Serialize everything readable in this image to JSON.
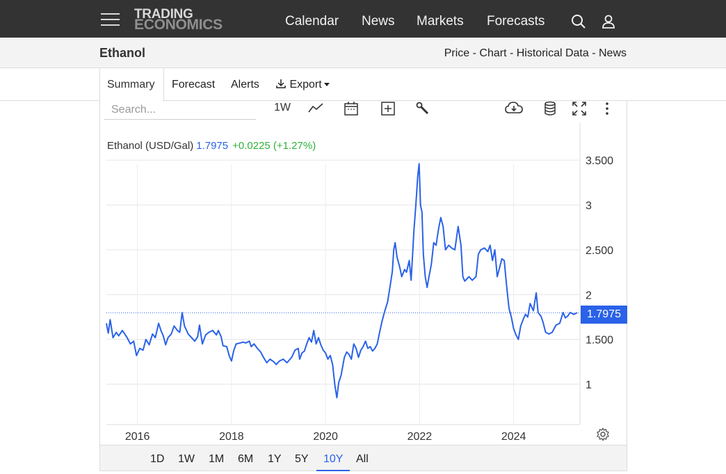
{
  "header": {
    "logo_line1": "TRADING",
    "logo_line2": "ECONOMICS",
    "nav": [
      "Calendar",
      "News",
      "Markets",
      "Forecasts"
    ],
    "icons": [
      "menu-icon",
      "search-icon",
      "user-icon"
    ]
  },
  "subheader": {
    "title": "Ethanol",
    "links": [
      "Price",
      "Chart",
      "Historical Data",
      "News"
    ],
    "separator": " - "
  },
  "tabs": {
    "summary": "Summary",
    "forecast": "Forecast",
    "alerts": "Alerts",
    "export": "Export"
  },
  "toolbar": {
    "search_placeholder": "Search...",
    "interval": "1W",
    "icons": [
      "line-chart-icon",
      "calendar-icon",
      "add-icon",
      "wrench-icon",
      "download-icon",
      "database-icon",
      "fullscreen-icon",
      "more-icon"
    ]
  },
  "legend": {
    "name": "Ethanol (USD/Gal)",
    "price": "1.7975",
    "change": "+0.0225 (+1.27%)"
  },
  "ranges": {
    "items": [
      "1D",
      "1W",
      "1M",
      "6M",
      "1Y",
      "5Y",
      "10Y",
      "All"
    ],
    "active": "10Y"
  },
  "colors": {
    "line": "#2a62e8",
    "positive": "#31b13b",
    "topbar": "#333333"
  },
  "chart_data": {
    "type": "line",
    "title": "Ethanol (USD/Gal)",
    "xlabel": "",
    "ylabel": "",
    "y_ticks": [
      1,
      1.5,
      2,
      2.5,
      3,
      3.5
    ],
    "y_tick_labels": [
      "1",
      "1.500",
      "2",
      "2.500",
      "3",
      "3.500"
    ],
    "x_ticks": [
      2016,
      2018,
      2020,
      2022,
      2024
    ],
    "x_tick_labels": [
      "2016",
      "2018",
      "2020",
      "2022",
      "2024"
    ],
    "xlim": [
      2015.34,
      2025.41
    ],
    "ylim": [
      0.55,
      3.92
    ],
    "grid": true,
    "last_price": 1.7975,
    "last_price_label": "1.7975",
    "series": [
      {
        "values": [
          [
            2015.34,
            1.68
          ],
          [
            2015.38,
            1.57
          ],
          [
            2015.42,
            1.72
          ],
          [
            2015.48,
            1.52
          ],
          [
            2015.55,
            1.58
          ],
          [
            2015.6,
            1.54
          ],
          [
            2015.68,
            1.6
          ],
          [
            2015.78,
            1.52
          ],
          [
            2015.85,
            1.45
          ],
          [
            2015.92,
            1.48
          ],
          [
            2015.98,
            1.32
          ],
          [
            2016.05,
            1.4
          ],
          [
            2016.12,
            1.38
          ],
          [
            2016.18,
            1.5
          ],
          [
            2016.25,
            1.44
          ],
          [
            2016.32,
            1.56
          ],
          [
            2016.38,
            1.52
          ],
          [
            2016.45,
            1.68
          ],
          [
            2016.5,
            1.6
          ],
          [
            2016.55,
            1.54
          ],
          [
            2016.6,
            1.44
          ],
          [
            2016.65,
            1.52
          ],
          [
            2016.72,
            1.56
          ],
          [
            2016.78,
            1.65
          ],
          [
            2016.85,
            1.6
          ],
          [
            2016.9,
            1.58
          ],
          [
            2016.95,
            1.8
          ],
          [
            2017.0,
            1.65
          ],
          [
            2017.08,
            1.56
          ],
          [
            2017.15,
            1.52
          ],
          [
            2017.22,
            1.48
          ],
          [
            2017.28,
            1.53
          ],
          [
            2017.32,
            1.66
          ],
          [
            2017.38,
            1.45
          ],
          [
            2017.45,
            1.55
          ],
          [
            2017.52,
            1.58
          ],
          [
            2017.6,
            1.6
          ],
          [
            2017.68,
            1.55
          ],
          [
            2017.72,
            1.6
          ],
          [
            2017.78,
            1.53
          ],
          [
            2017.82,
            1.43
          ],
          [
            2017.9,
            1.42
          ],
          [
            2017.95,
            1.32
          ],
          [
            2018.0,
            1.26
          ],
          [
            2018.05,
            1.38
          ],
          [
            2018.1,
            1.45
          ],
          [
            2018.18,
            1.46
          ],
          [
            2018.25,
            1.47
          ],
          [
            2018.3,
            1.46
          ],
          [
            2018.38,
            1.48
          ],
          [
            2018.42,
            1.42
          ],
          [
            2018.48,
            1.45
          ],
          [
            2018.55,
            1.4
          ],
          [
            2018.62,
            1.36
          ],
          [
            2018.68,
            1.3
          ],
          [
            2018.75,
            1.24
          ],
          [
            2018.82,
            1.28
          ],
          [
            2018.9,
            1.25
          ],
          [
            2018.95,
            1.22
          ],
          [
            2019.02,
            1.26
          ],
          [
            2019.1,
            1.28
          ],
          [
            2019.18,
            1.24
          ],
          [
            2019.28,
            1.3
          ],
          [
            2019.35,
            1.38
          ],
          [
            2019.42,
            1.4
          ],
          [
            2019.45,
            1.28
          ],
          [
            2019.5,
            1.35
          ],
          [
            2019.55,
            1.37
          ],
          [
            2019.6,
            1.45
          ],
          [
            2019.65,
            1.52
          ],
          [
            2019.7,
            1.47
          ],
          [
            2019.75,
            1.6
          ],
          [
            2019.8,
            1.45
          ],
          [
            2019.85,
            1.52
          ],
          [
            2019.9,
            1.44
          ],
          [
            2019.95,
            1.38
          ],
          [
            2020.0,
            1.35
          ],
          [
            2020.05,
            1.28
          ],
          [
            2020.1,
            1.32
          ],
          [
            2020.15,
            1.22
          ],
          [
            2020.2,
            0.98
          ],
          [
            2020.24,
            0.85
          ],
          [
            2020.28,
            1.02
          ],
          [
            2020.33,
            1.1
          ],
          [
            2020.4,
            1.3
          ],
          [
            2020.45,
            1.36
          ],
          [
            2020.5,
            1.33
          ],
          [
            2020.55,
            1.28
          ],
          [
            2020.6,
            1.45
          ],
          [
            2020.65,
            1.4
          ],
          [
            2020.7,
            1.3
          ],
          [
            2020.75,
            1.38
          ],
          [
            2020.8,
            1.42
          ],
          [
            2020.85,
            1.48
          ],
          [
            2020.9,
            1.4
          ],
          [
            2020.95,
            1.42
          ],
          [
            2021.0,
            1.37
          ],
          [
            2021.05,
            1.4
          ],
          [
            2021.1,
            1.45
          ],
          [
            2021.15,
            1.58
          ],
          [
            2021.2,
            1.7
          ],
          [
            2021.25,
            1.8
          ],
          [
            2021.32,
            1.92
          ],
          [
            2021.38,
            2.12
          ],
          [
            2021.42,
            2.26
          ],
          [
            2021.45,
            2.5
          ],
          [
            2021.48,
            2.58
          ],
          [
            2021.52,
            2.42
          ],
          [
            2021.58,
            2.3
          ],
          [
            2021.62,
            2.2
          ],
          [
            2021.68,
            2.28
          ],
          [
            2021.72,
            2.25
          ],
          [
            2021.78,
            2.38
          ],
          [
            2021.82,
            2.16
          ],
          [
            2021.88,
            2.72
          ],
          [
            2021.92,
            3.0
          ],
          [
            2021.96,
            3.32
          ],
          [
            2021.99,
            3.46
          ],
          [
            2022.02,
            3.0
          ],
          [
            2022.05,
            2.92
          ],
          [
            2022.08,
            2.45
          ],
          [
            2022.12,
            2.2
          ],
          [
            2022.16,
            2.08
          ],
          [
            2022.2,
            2.2
          ],
          [
            2022.25,
            2.34
          ],
          [
            2022.3,
            2.58
          ],
          [
            2022.35,
            2.55
          ],
          [
            2022.4,
            2.72
          ],
          [
            2022.45,
            2.86
          ],
          [
            2022.5,
            2.76
          ],
          [
            2022.55,
            2.5
          ],
          [
            2022.62,
            2.55
          ],
          [
            2022.68,
            2.52
          ],
          [
            2022.75,
            2.5
          ],
          [
            2022.82,
            2.76
          ],
          [
            2022.88,
            2.55
          ],
          [
            2022.92,
            2.2
          ],
          [
            2022.96,
            2.15
          ],
          [
            2023.05,
            2.2
          ],
          [
            2023.12,
            2.16
          ],
          [
            2023.2,
            2.2
          ],
          [
            2023.25,
            2.45
          ],
          [
            2023.3,
            2.5
          ],
          [
            2023.38,
            2.52
          ],
          [
            2023.45,
            2.48
          ],
          [
            2023.5,
            2.55
          ],
          [
            2023.55,
            2.38
          ],
          [
            2023.6,
            2.5
          ],
          [
            2023.65,
            2.2
          ],
          [
            2023.7,
            2.3
          ],
          [
            2023.75,
            2.4
          ],
          [
            2023.8,
            2.38
          ],
          [
            2023.85,
            2.1
          ],
          [
            2023.9,
            1.85
          ],
          [
            2023.95,
            1.75
          ],
          [
            2024.0,
            1.62
          ],
          [
            2024.05,
            1.55
          ],
          [
            2024.1,
            1.5
          ],
          [
            2024.15,
            1.65
          ],
          [
            2024.2,
            1.72
          ],
          [
            2024.25,
            1.78
          ],
          [
            2024.3,
            1.75
          ],
          [
            2024.35,
            1.9
          ],
          [
            2024.42,
            1.82
          ],
          [
            2024.48,
            2.02
          ],
          [
            2024.52,
            1.8
          ],
          [
            2024.58,
            1.76
          ],
          [
            2024.62,
            1.7
          ],
          [
            2024.68,
            1.58
          ],
          [
            2024.75,
            1.56
          ],
          [
            2024.82,
            1.58
          ],
          [
            2024.9,
            1.66
          ],
          [
            2024.98,
            1.68
          ],
          [
            2025.05,
            1.8
          ],
          [
            2025.1,
            1.74
          ],
          [
            2025.15,
            1.76
          ],
          [
            2025.2,
            1.8
          ],
          [
            2025.28,
            1.78
          ],
          [
            2025.35,
            1.7975
          ]
        ]
      }
    ]
  }
}
